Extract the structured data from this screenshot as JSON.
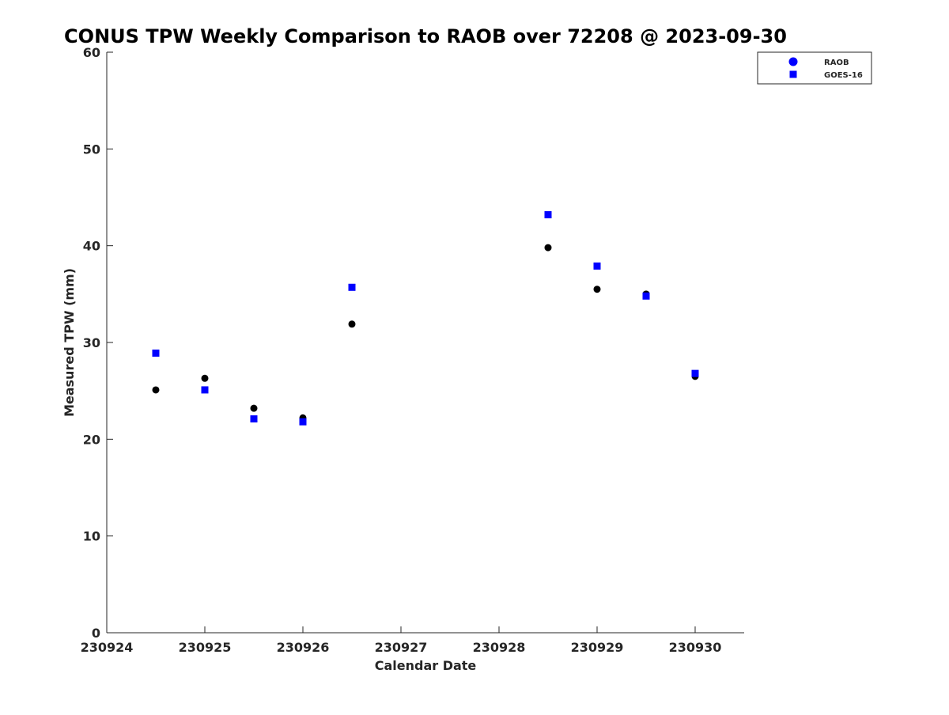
{
  "chart_data": {
    "type": "scatter",
    "title": "CONUS TPW Weekly Comparison to RAOB over 72208 @ 2023-09-30",
    "xlabel": "Calendar Date",
    "ylabel": "Measured TPW (mm)",
    "xlim": [
      "2023-09-24T00:00",
      "2023-09-30T12:00"
    ],
    "ylim": [
      0,
      60
    ],
    "yticks": [
      0,
      10,
      20,
      30,
      40,
      50,
      60
    ],
    "xticks": [
      {
        "value": "2023-09-24T00:00",
        "label": "230924"
      },
      {
        "value": "2023-09-25T00:00",
        "label": "230925"
      },
      {
        "value": "2023-09-26T00:00",
        "label": "230926"
      },
      {
        "value": "2023-09-27T00:00",
        "label": "230927"
      },
      {
        "value": "2023-09-28T00:00",
        "label": "230928"
      },
      {
        "value": "2023-09-29T00:00",
        "label": "230929"
      },
      {
        "value": "2023-09-30T00:00",
        "label": "230930"
      }
    ],
    "grid": false,
    "legend_position": "top-right",
    "series": [
      {
        "name": "RAOB",
        "marker": "circle",
        "legend_color": "#0000ff",
        "color": "#000000",
        "points": [
          {
            "x": "2023-09-24T12:00",
            "y": 25.1
          },
          {
            "x": "2023-09-25T00:00",
            "y": 26.3
          },
          {
            "x": "2023-09-25T12:00",
            "y": 23.2
          },
          {
            "x": "2023-09-26T00:00",
            "y": 22.2
          },
          {
            "x": "2023-09-26T12:00",
            "y": 31.9
          },
          {
            "x": "2023-09-28T12:00",
            "y": 39.8
          },
          {
            "x": "2023-09-29T00:00",
            "y": 35.5
          },
          {
            "x": "2023-09-29T12:00",
            "y": 35.0
          },
          {
            "x": "2023-09-30T00:00",
            "y": 26.5
          }
        ]
      },
      {
        "name": "GOES-16",
        "marker": "square",
        "legend_color": "#0000ff",
        "color": "#0000ff",
        "points": [
          {
            "x": "2023-09-24T12:00",
            "y": 28.9
          },
          {
            "x": "2023-09-25T00:00",
            "y": 25.1
          },
          {
            "x": "2023-09-25T12:00",
            "y": 22.1
          },
          {
            "x": "2023-09-26T00:00",
            "y": 21.8
          },
          {
            "x": "2023-09-26T12:00",
            "y": 35.7
          },
          {
            "x": "2023-09-28T12:00",
            "y": 43.2
          },
          {
            "x": "2023-09-29T00:00",
            "y": 37.9
          },
          {
            "x": "2023-09-29T12:00",
            "y": 34.8
          },
          {
            "x": "2023-09-30T00:00",
            "y": 26.8
          }
        ]
      }
    ]
  }
}
